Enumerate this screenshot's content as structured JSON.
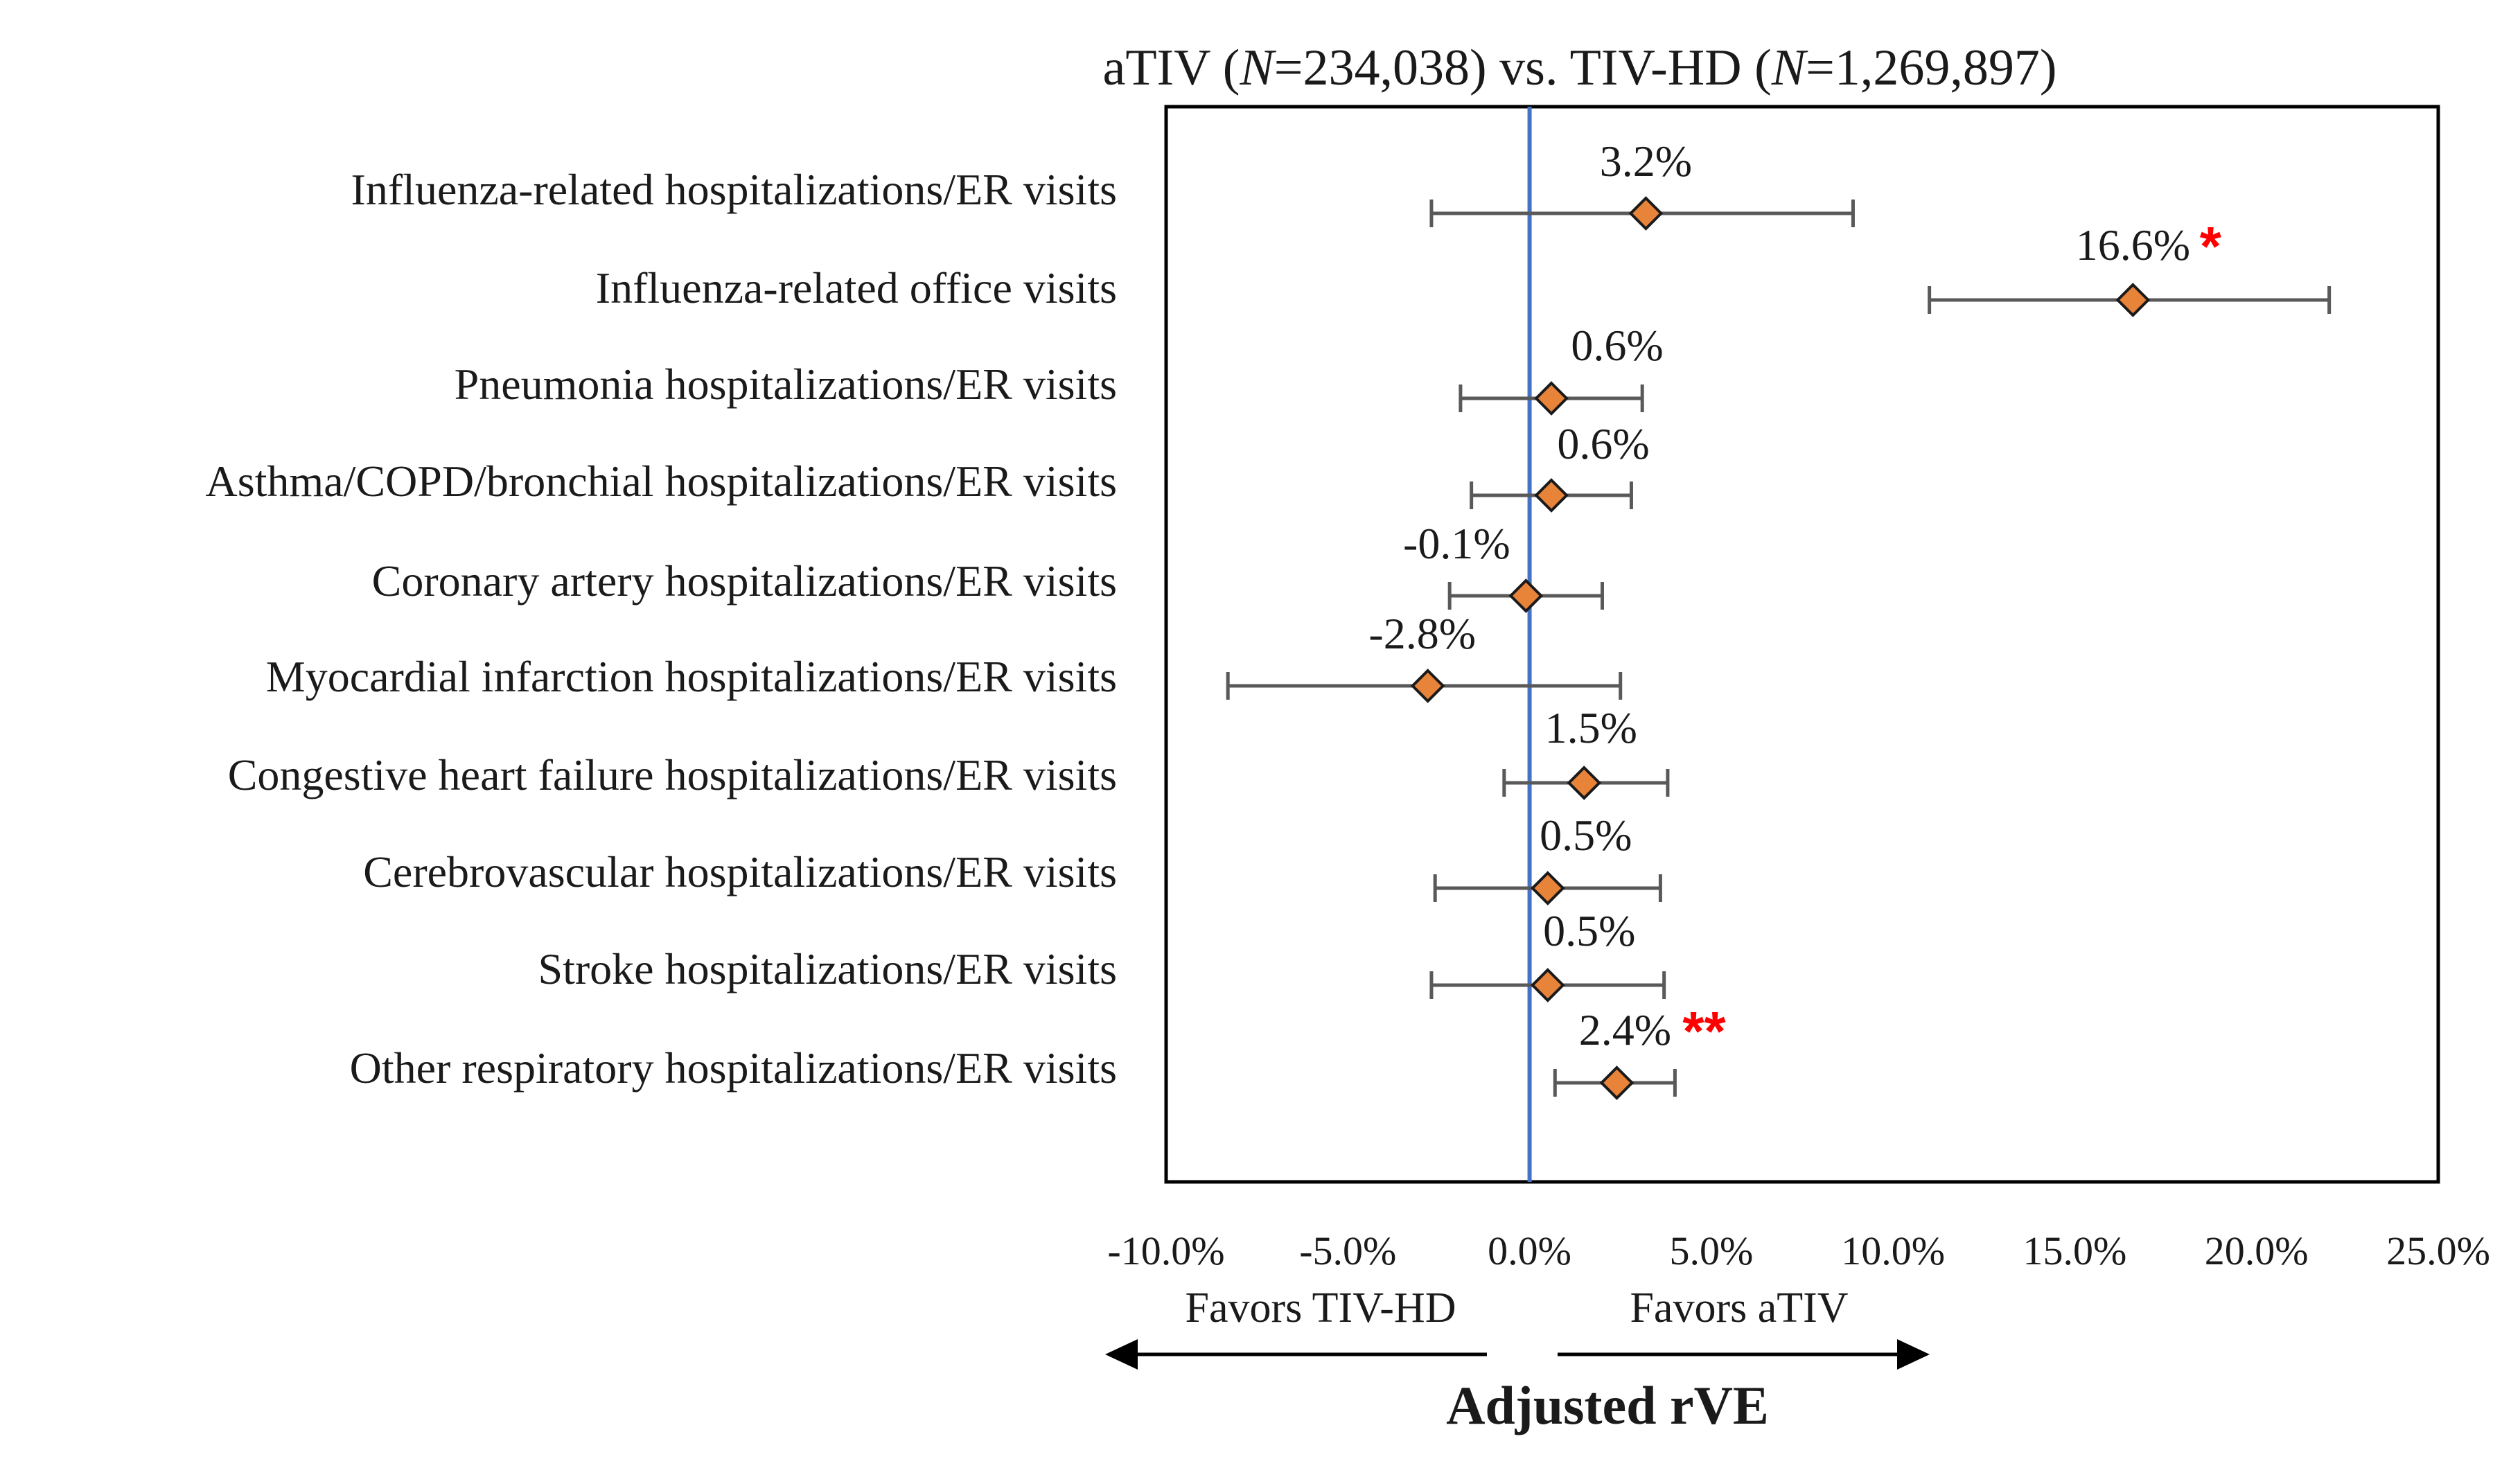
{
  "chart_data": {
    "type": "forest",
    "title": {
      "prefix": "aTIV (",
      "n1_label": "N",
      "n1_value": "=234,038) vs. TIV-HD (",
      "n2_label": "N",
      "n2_value": "=1,269,897)"
    },
    "xlabel": "Adjusted rVE",
    "xlim": [
      -10,
      25
    ],
    "xticks": [
      -10,
      -5,
      0,
      5,
      10,
      15,
      20,
      25
    ],
    "xtick_labels": [
      "-10.0%",
      "-5.0%",
      "0.0%",
      "5.0%",
      "10.0%",
      "15.0%",
      "20.0%",
      "25.0%"
    ],
    "reference_line": 0,
    "favors_left": "Favors TIV-HD",
    "favors_right": "Favors aTIV",
    "colors": {
      "marker": "#E8833A",
      "reference": "#4472C4",
      "whisker": "#595959",
      "significance": "#FF0000"
    },
    "rows": [
      {
        "label": "Influenza-related hospitalizations/ER visits",
        "value": 3.2,
        "ci": [
          -2.7,
          8.9
        ],
        "value_label": "3.2%",
        "significance": ""
      },
      {
        "label": "Influenza-related office visits",
        "value": 16.6,
        "ci": [
          11.0,
          22.0
        ],
        "value_label": "16.6%",
        "significance": "*"
      },
      {
        "label": "Pneumonia hospitalizations/ER visits",
        "value": 0.6,
        "ci": [
          -1.9,
          3.1
        ],
        "value_label": "0.6%",
        "significance": ""
      },
      {
        "label": "Asthma/COPD/bronchial hospitalizations/ER visits",
        "value": 0.6,
        "ci": [
          -1.6,
          2.8
        ],
        "value_label": "0.6%",
        "significance": ""
      },
      {
        "label": "Coronary artery hospitalizations/ER visits",
        "value": -0.1,
        "ci": [
          -2.2,
          2.0
        ],
        "value_label": "-0.1%",
        "significance": ""
      },
      {
        "label": "Myocardial infarction hospitalizations/ER visits",
        "value": -2.8,
        "ci": [
          -8.3,
          2.5
        ],
        "value_label": "-2.8%",
        "significance": ""
      },
      {
        "label": "Congestive heart failure hospitalizations/ER visits",
        "value": 1.5,
        "ci": [
          -0.7,
          3.8
        ],
        "value_label": "1.5%",
        "significance": ""
      },
      {
        "label": "Cerebrovascular hospitalizations/ER visits",
        "value": 0.5,
        "ci": [
          -2.6,
          3.6
        ],
        "value_label": "0.5%",
        "significance": ""
      },
      {
        "label": "Stroke hospitalizations/ER visits",
        "value": 0.5,
        "ci": [
          -2.7,
          3.7
        ],
        "value_label": "0.5%",
        "significance": ""
      },
      {
        "label": "Other respiratory hospitalizations/ER visits",
        "value": 2.4,
        "ci": [
          0.7,
          4.0
        ],
        "value_label": "2.4%",
        "significance": "**"
      }
    ]
  }
}
